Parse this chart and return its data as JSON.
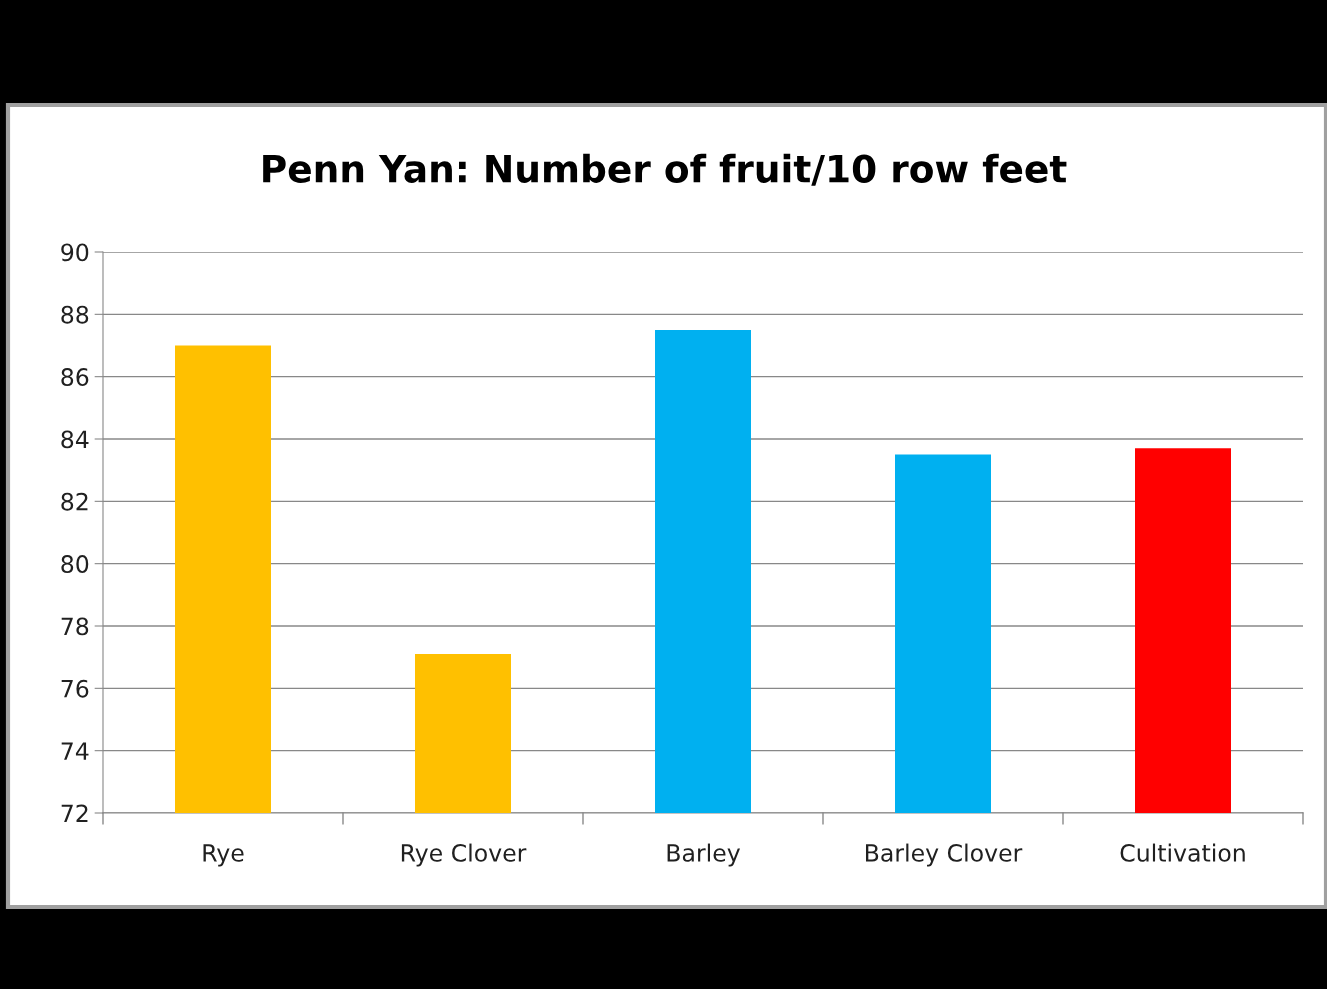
{
  "chart_data": {
    "type": "bar",
    "title": "Penn Yan: Number of fruit/10 row feet",
    "categories": [
      "Rye",
      "Rye Clover",
      "Barley",
      "Barley Clover",
      "Cultivation"
    ],
    "values": [
      87.0,
      77.1,
      87.5,
      83.5,
      83.7
    ],
    "colors": [
      "#ffc000",
      "#ffc000",
      "#00b0f0",
      "#00b0f0",
      "#ff0000"
    ],
    "ylim": [
      72,
      90
    ],
    "yticks": [
      72,
      74,
      76,
      78,
      80,
      82,
      84,
      86,
      88,
      90
    ],
    "grid": "y",
    "legend": false
  }
}
